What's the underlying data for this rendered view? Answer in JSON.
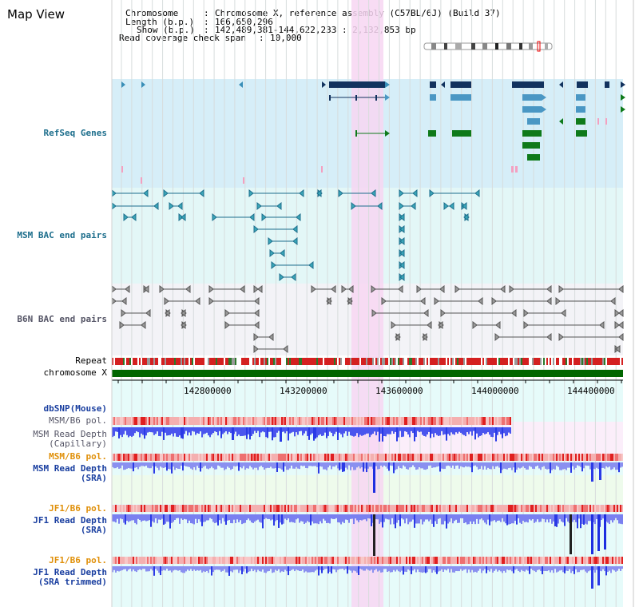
{
  "title": "Map View",
  "info": {
    "chromosome_key": "Chromosome",
    "chromosome_val": "Chromosome X, reference assembly (C57BL/6J) (Build 37)",
    "length_key": "Length (b.p.)",
    "length_val": "166,650,296",
    "show_key": "Show (b.p.)",
    "show_val": "142,489,381-144,622,233 : 2,132,853 bp",
    "coverage_key": "Read coverage check span",
    "coverage_val": "10,000"
  },
  "tracks": {
    "refseq": "RefSeq Genes",
    "msm_bac": "MSM BAC end pairs",
    "b6n_bac": "B6N BAC end pairs",
    "repeat": "Repeat",
    "chromosome": "chromosome X",
    "dbsnp": "dbSNP(Mouse)",
    "msm_b6_pol_1": "MSM/B6 pol.",
    "msm_depth_cap_1": "MSM Read Depth",
    "msm_depth_cap_2": "(Capillary)",
    "msm_b6_pol_2": "MSM/B6 pol.",
    "msm_depth_sra_1": "MSM Read Depth",
    "msm_depth_sra_2": "(SRA)",
    "jf1_b6_pol_1": "JF1/B6 pol.",
    "jf1_depth_sra_1": "JF1 Read Depth",
    "jf1_depth_sra_2": "(SRA)",
    "jf1_b6_pol_2": "JF1/B6 pol.",
    "jf1_depth_trim_1": "JF1 Read Depth",
    "jf1_depth_trim_2": "(SRA trimmed)"
  },
  "axis_ticks": [
    "142800000",
    "143200000",
    "143600000",
    "144000000",
    "144400000"
  ],
  "colors": {
    "refseq_bg": "#d6eef8",
    "msm_bac_bg": "#e3f7f7",
    "b6n_bac_bg": "#f3f3f7",
    "highlight": "#f7d6f2",
    "chromosome_bar": "#006600",
    "gene_dark": "#12325e",
    "gene_mid": "#4a97c4",
    "gene_green": "#0f7a1a",
    "depth_blue": "#7a80f0",
    "depth_dark": "#1e2ee0"
  }
}
